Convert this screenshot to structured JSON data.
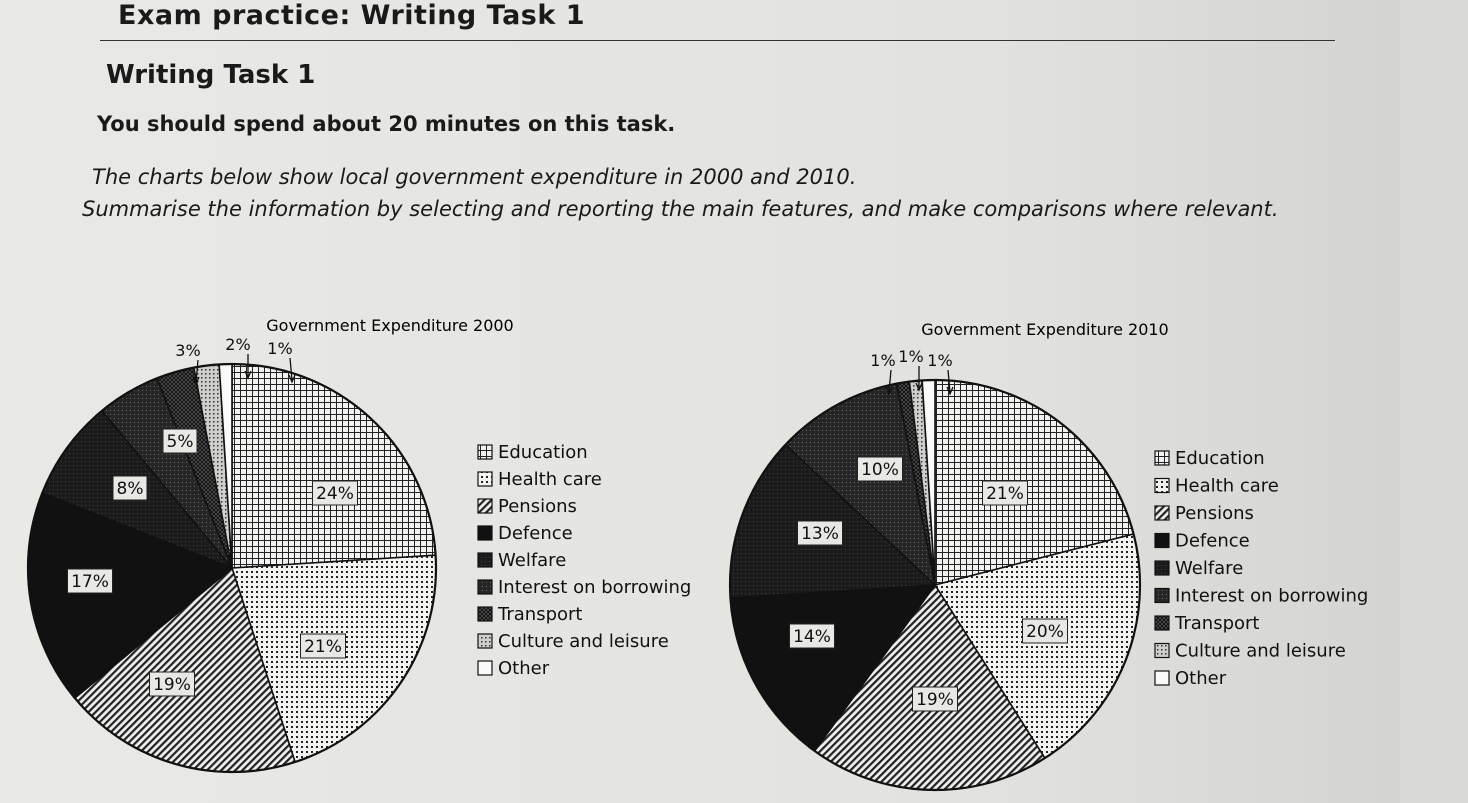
{
  "page": {
    "heading": "Exam practice: Writing Task 1",
    "task_title": "Writing Task 1",
    "instruction": "You should spend about 20 minutes on this task.",
    "prompt": "The charts below show local government expenditure in 2000 and 2010.",
    "summary": "Summarise the information by selecting and reporting the main features, and make comparisons where relevant."
  },
  "chart_data": [
    {
      "type": "pie",
      "title": "Government Expenditure 2000",
      "categories": [
        "Education",
        "Health care",
        "Pensions",
        "Defence",
        "Welfare",
        "Interest on borrowing",
        "Transport",
        "Culture and leisure",
        "Other"
      ],
      "values": [
        24,
        21,
        19,
        17,
        8,
        5,
        3,
        2,
        1
      ],
      "labels": [
        "24%",
        "21%",
        "19%",
        "17%",
        "8%",
        "5%",
        "3%",
        "2%",
        "1%"
      ],
      "legend": "right"
    },
    {
      "type": "pie",
      "title": "Government Expenditure 2010",
      "categories": [
        "Education",
        "Health care",
        "Pensions",
        "Defence",
        "Welfare",
        "Interest on borrowing",
        "Transport",
        "Culture and leisure",
        "Other"
      ],
      "values": [
        21,
        20,
        19,
        14,
        13,
        10,
        1,
        1,
        1
      ],
      "labels": [
        "21%",
        "20%",
        "19%",
        "14%",
        "13%",
        "10%",
        "1%",
        "1%",
        "1%"
      ],
      "legend": "right"
    }
  ],
  "pattern_names": [
    "education-grid",
    "health-dots",
    "pensions-hatch",
    "defence-solid",
    "welfare-solid",
    "interest-solid",
    "transport-cross",
    "culture-dots",
    "other-blank"
  ]
}
